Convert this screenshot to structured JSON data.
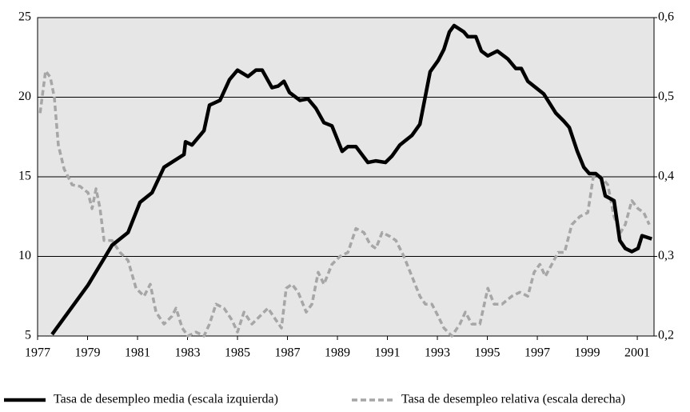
{
  "chart_data": {
    "type": "line",
    "xlim": [
      1977,
      2001.67
    ],
    "xticks": [
      1977,
      1979,
      1981,
      1983,
      1985,
      1987,
      1989,
      1991,
      1993,
      1995,
      1997,
      1999,
      2001
    ],
    "ylim": [
      5,
      25
    ],
    "yticks": [
      5,
      10,
      15,
      20,
      25
    ],
    "y2lim": [
      0.2,
      0.6
    ],
    "y2ticks": [
      {
        "value": 0.2,
        "label": "0,2"
      },
      {
        "value": 0.3,
        "label": "0,3"
      },
      {
        "value": 0.4,
        "label": "0,4"
      },
      {
        "value": 0.5,
        "label": "0,5"
      },
      {
        "value": 0.6,
        "label": "0,6"
      }
    ],
    "grid": true,
    "legend": "bottom",
    "series": [
      {
        "name": "Tasa de desempleo media (escala izquierda)",
        "color": "#000000",
        "axis": "y",
        "dash": false,
        "x": [
          1977.58,
          1979.02,
          1979.98,
          1980.62,
          1981.1,
          1981.58,
          1982.06,
          1982.86,
          1982.92,
          1983.18,
          1983.66,
          1983.88,
          1984.3,
          1984.68,
          1985.0,
          1985.42,
          1985.74,
          1985.99,
          1986.38,
          1986.63,
          1986.86,
          1987.08,
          1987.5,
          1987.82,
          1988.14,
          1988.46,
          1988.78,
          1989.19,
          1989.42,
          1989.74,
          1990.22,
          1990.54,
          1990.92,
          1991.18,
          1991.5,
          1991.98,
          1992.3,
          1992.71,
          1993.03,
          1993.26,
          1993.48,
          1993.67,
          1994.06,
          1994.22,
          1994.54,
          1994.76,
          1995.02,
          1995.4,
          1995.82,
          1996.14,
          1996.36,
          1996.62,
          1996.94,
          1997.26,
          1997.74,
          1998.06,
          1998.28,
          1998.6,
          1998.86,
          1999.08,
          1999.34,
          1999.56,
          1999.72,
          2000.07,
          2000.3,
          2000.52,
          2000.78,
          2001.03,
          2001.19,
          2001.58
        ],
        "values": [
          5.1,
          8.2,
          10.7,
          11.5,
          13.4,
          14.0,
          15.6,
          16.4,
          17.2,
          17.0,
          17.9,
          19.5,
          19.8,
          21.1,
          21.7,
          21.3,
          21.7,
          21.7,
          20.6,
          20.7,
          21.0,
          20.3,
          19.8,
          19.9,
          19.3,
          18.4,
          18.2,
          16.6,
          16.9,
          16.9,
          15.9,
          16.0,
          15.9,
          16.3,
          17.0,
          17.6,
          18.3,
          21.6,
          22.3,
          23.0,
          24.1,
          24.5,
          24.1,
          23.8,
          23.8,
          22.9,
          22.6,
          22.9,
          22.4,
          21.8,
          21.8,
          21.0,
          20.6,
          20.2,
          19.0,
          18.5,
          18.1,
          16.6,
          15.6,
          15.2,
          15.2,
          14.9,
          13.8,
          13.5,
          11.0,
          10.5,
          10.3,
          10.5,
          11.3,
          11.1
        ]
      },
      {
        "name": "Tasa de desempleo relativa (escala derecha)",
        "color": "#a6a6a6",
        "axis": "y2",
        "dash": true,
        "x": [
          1977.1,
          1977.32,
          1977.51,
          1977.67,
          1977.83,
          1978.06,
          1978.38,
          1978.7,
          1979.02,
          1979.18,
          1979.34,
          1979.5,
          1979.66,
          1979.98,
          1980.3,
          1980.62,
          1980.94,
          1981.26,
          1981.51,
          1981.74,
          1982.06,
          1982.38,
          1982.54,
          1982.79,
          1983.02,
          1983.34,
          1983.66,
          1983.88,
          1984.14,
          1984.46,
          1984.78,
          1985.0,
          1985.26,
          1985.58,
          1985.9,
          1986.22,
          1986.54,
          1986.76,
          1986.95,
          1987.18,
          1987.43,
          1987.75,
          1987.98,
          1988.23,
          1988.46,
          1988.78,
          1989.1,
          1989.42,
          1989.74,
          1990.06,
          1990.31,
          1990.54,
          1990.79,
          1991.11,
          1991.34,
          1991.66,
          1991.98,
          1992.3,
          1992.52,
          1992.78,
          1993.03,
          1993.26,
          1993.58,
          1993.9,
          1994.12,
          1994.38,
          1994.7,
          1995.02,
          1995.27,
          1995.59,
          1995.98,
          1996.3,
          1996.62,
          1996.87,
          1997.1,
          1997.32,
          1997.58,
          1997.83,
          1998.09,
          1998.38,
          1998.7,
          1999.02,
          1999.24,
          1999.56,
          1999.82,
          2000.07,
          2000.33,
          2000.52,
          2000.78,
          2001.03,
          2001.26,
          2001.48
        ],
        "values": [
          0.48,
          0.533,
          0.525,
          0.5,
          0.44,
          0.41,
          0.39,
          0.388,
          0.38,
          0.36,
          0.385,
          0.36,
          0.32,
          0.32,
          0.305,
          0.295,
          0.26,
          0.25,
          0.265,
          0.23,
          0.215,
          0.225,
          0.235,
          0.21,
          0.2,
          0.205,
          0.2,
          0.215,
          0.24,
          0.235,
          0.22,
          0.205,
          0.23,
          0.215,
          0.225,
          0.235,
          0.22,
          0.21,
          0.26,
          0.265,
          0.255,
          0.23,
          0.24,
          0.28,
          0.265,
          0.29,
          0.3,
          0.305,
          0.335,
          0.33,
          0.315,
          0.31,
          0.33,
          0.325,
          0.32,
          0.3,
          0.275,
          0.25,
          0.24,
          0.24,
          0.225,
          0.21,
          0.2,
          0.215,
          0.23,
          0.215,
          0.215,
          0.26,
          0.24,
          0.24,
          0.25,
          0.255,
          0.25,
          0.28,
          0.29,
          0.275,
          0.29,
          0.305,
          0.305,
          0.34,
          0.35,
          0.355,
          0.4,
          0.4,
          0.39,
          0.35,
          0.33,
          0.34,
          0.37,
          0.36,
          0.355,
          0.34
        ]
      }
    ]
  }
}
